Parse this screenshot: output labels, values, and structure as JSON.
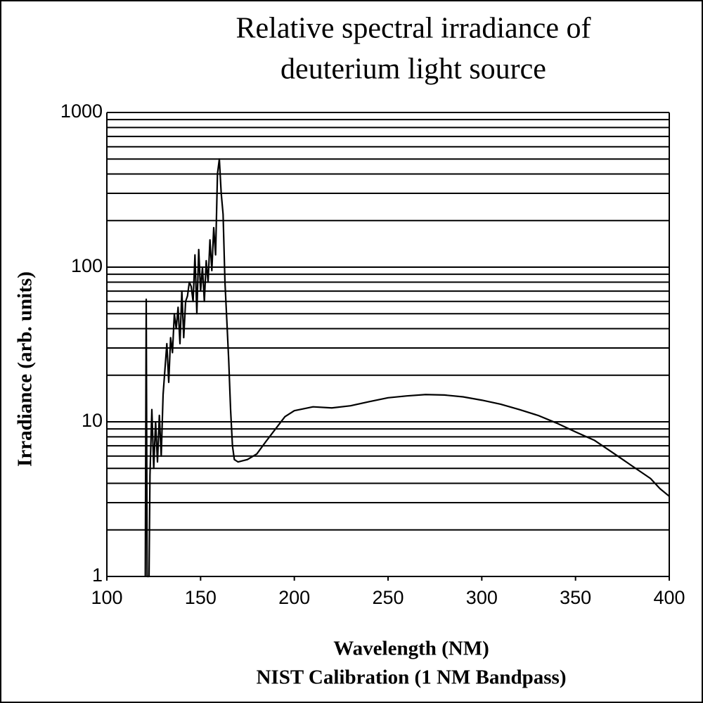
{
  "chart_data": {
    "type": "line",
    "title": [
      "Relative spectral irradiance of",
      "deuterium light source"
    ],
    "x_label": [
      "Wavelength (NM)",
      "NIST Calibration (1 NM Bandpass)"
    ],
    "y_label": "Irradiance (arb. units)",
    "color": "#000000",
    "y_log": true,
    "grid": true,
    "minor_grid": true,
    "xlim": [
      100,
      400
    ],
    "xticks": [
      100,
      150,
      200,
      250,
      300,
      350,
      400
    ],
    "ylim": [
      1,
      1000
    ],
    "yticks": [
      1,
      10,
      100,
      1000
    ],
    "x": [
      120.5,
      121,
      121.5,
      122.5,
      123,
      124,
      125,
      126,
      127,
      128,
      129,
      130,
      131,
      132,
      133,
      134,
      135,
      136,
      137,
      138,
      139,
      140,
      141,
      142,
      143,
      144,
      145,
      146,
      147,
      148,
      149,
      150,
      151,
      152,
      153,
      154,
      155,
      156,
      157,
      158,
      159,
      160,
      161,
      162,
      163,
      164,
      165,
      166,
      167,
      168,
      170,
      175,
      180,
      185,
      190,
      195,
      200,
      210,
      220,
      230,
      240,
      250,
      260,
      270,
      280,
      290,
      300,
      310,
      320,
      330,
      340,
      350,
      360,
      370,
      380,
      390,
      395,
      400
    ],
    "values": [
      1,
      62,
      1,
      1,
      4.5,
      12,
      5,
      10,
      5.5,
      11,
      6,
      15,
      22,
      32,
      18,
      35,
      28,
      50,
      40,
      55,
      32,
      70,
      35,
      60,
      65,
      80,
      75,
      60,
      120,
      50,
      130,
      70,
      100,
      60,
      110,
      80,
      150,
      95,
      180,
      120,
      400,
      500,
      300,
      220,
      80,
      45,
      25,
      12,
      7,
      5.7,
      5.5,
      5.7,
      6.2,
      7.5,
      9,
      10.8,
      11.8,
      12.5,
      12.3,
      12.7,
      13.5,
      14.3,
      14.7,
      15,
      14.9,
      14.5,
      13.8,
      13,
      12,
      11,
      9.8,
      8.6,
      7.6,
      6.3,
      5.2,
      4.3,
      3.7,
      3.3
    ]
  }
}
